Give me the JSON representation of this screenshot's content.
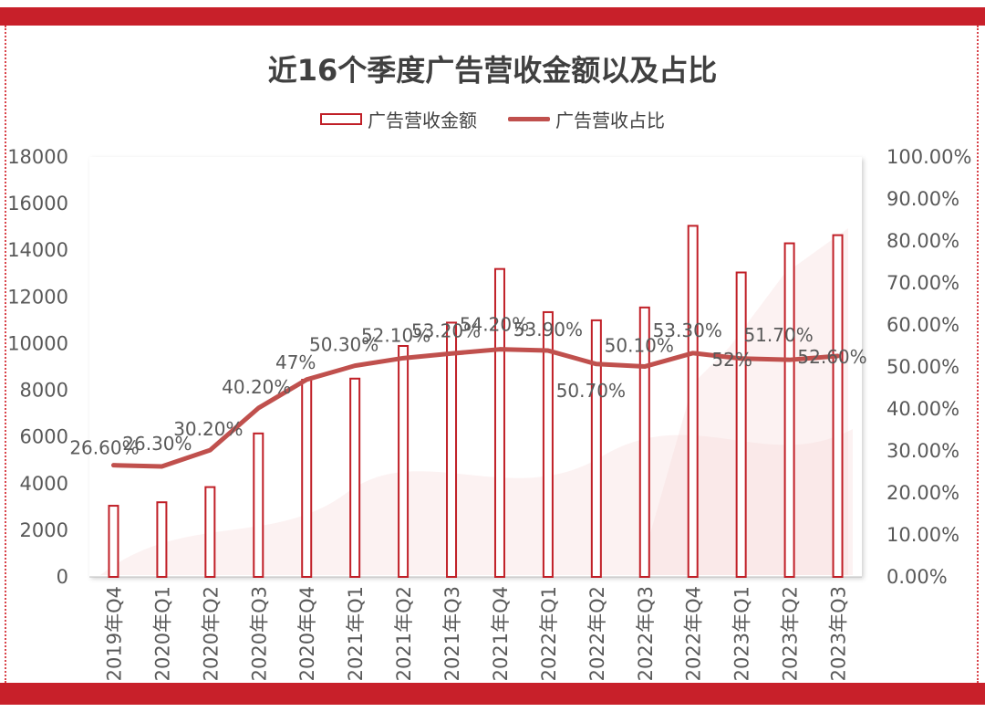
{
  "chart_data": {
    "type": "bar+line",
    "title": "近16个季度广告营收金额以及占比",
    "categories": [
      "2019年Q4",
      "2020年Q1",
      "2020年Q2",
      "2020年Q3",
      "2020年Q4",
      "2021年Q1",
      "2021年Q2",
      "2021年Q3",
      "2021年Q4",
      "2022年Q1",
      "2022年Q2",
      "2022年Q3",
      "2022年Q4",
      "2023年Q1",
      "2023年Q2",
      "2023年Q3"
    ],
    "series": [
      {
        "name": "广告营收金额",
        "type": "bar",
        "axis": "left",
        "values": [
          3050,
          3200,
          3850,
          6150,
          8450,
          8500,
          9900,
          10900,
          13200,
          11350,
          11000,
          11550,
          15050,
          13050,
          14300,
          14650
        ]
      },
      {
        "name": "广告营收占比",
        "type": "line",
        "axis": "right",
        "values": [
          26.6,
          26.3,
          30.2,
          40.2,
          47,
          50.3,
          52.1,
          53.2,
          54.2,
          53.9,
          50.7,
          50.1,
          53.3,
          52,
          51.7,
          52.6
        ],
        "labels": [
          "26.60%",
          "26.30%",
          "30.20%",
          "40.20%",
          "47%",
          "50.30%",
          "52.10%",
          "53.20%",
          "54.20%",
          "53.90%",
          "50.70%",
          "50.10%",
          "53.30%",
          "52%",
          "51.70%",
          "52.60%"
        ]
      }
    ],
    "y_left": {
      "min": 0,
      "max": 18000,
      "ticks": [
        "0",
        "2000",
        "4000",
        "6000",
        "8000",
        "10000",
        "12000",
        "14000",
        "16000",
        "18000"
      ]
    },
    "y_right": {
      "min": 0,
      "max": 100,
      "ticks": [
        "0.00%",
        "10.00%",
        "20.00%",
        "30.00%",
        "40.00%",
        "50.00%",
        "60.00%",
        "70.00%",
        "80.00%",
        "90.00%",
        "100.00%"
      ]
    },
    "legend_position": "top-center",
    "grid": false
  },
  "colors": {
    "bar_stroke": "#c01f27",
    "line": "#c0504d",
    "frame_red": "#c8202a",
    "text": "#595959"
  }
}
